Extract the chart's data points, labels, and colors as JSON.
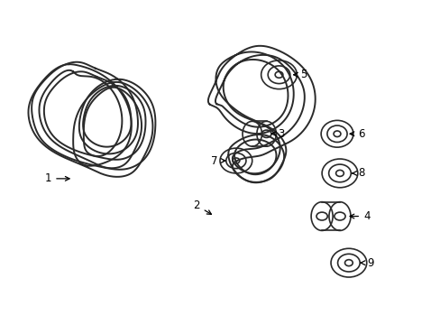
{
  "background_color": "#ffffff",
  "line_color": "#2a2a2a",
  "fig_width": 4.89,
  "fig_height": 3.6,
  "dpi": 100,
  "belt_lw": 1.4,
  "pulley_lw": 1.2,
  "label_fontsize": 8.5
}
